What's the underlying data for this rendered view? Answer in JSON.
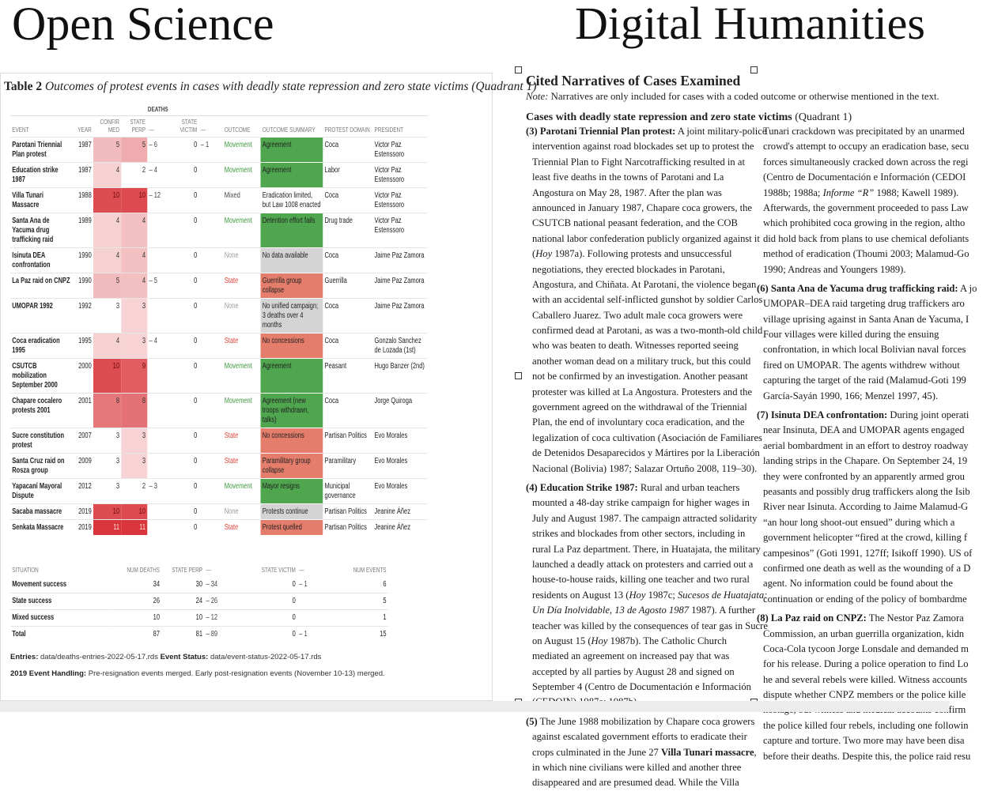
{
  "headings": {
    "left": "Open Science",
    "right": "Digital Humanities"
  },
  "colors": {
    "movement": "#3f9a3f",
    "state": "#e0433e",
    "none": "#9a9a9a",
    "mixed": "#444444",
    "green_fill": "#4fa64f",
    "red_fill": "#e47d6b",
    "gray_fill": "#d4d4d4",
    "heat_max": "#d9363c"
  },
  "table": {
    "title_bold": "Table 2",
    "title_italic": " Outcomes of protest events in cases with deadly state repression and zero state victims (Quadrant 1)",
    "group_header": "DEATHS",
    "columns": {
      "event": "EVENT",
      "year": "YEAR",
      "confirmed": "CONFIR MED",
      "state_perp": "STATE PERP",
      "perp_dash": "—",
      "state_victim": "STATE VICTIM",
      "victim_dash": "—",
      "outcome": "OUTCOME",
      "summary": "OUTCOME SUMMARY",
      "domain": "PROTEST DOMAIN",
      "president": "PRESIDENT"
    },
    "rows": [
      {
        "event": "Parotani Triennial Plan protest",
        "year": "1987",
        "confirmed": 5,
        "state_perp": 5,
        "perp_range": "– 6",
        "state_victim": "0",
        "victim_range": "– 1",
        "outcome": "Movement",
        "summary": "Agreement",
        "summary_type": "green",
        "domain": "Coca",
        "president": "Victor Paz Estenssoro"
      },
      {
        "event": "Education strike 1987",
        "year": "1987",
        "confirmed": 4,
        "state_perp": 2,
        "perp_range": "– 4",
        "state_victim": "0",
        "victim_range": "",
        "outcome": "Movement",
        "summary": "Agreement",
        "summary_type": "green",
        "domain": "Labor",
        "president": "Victor Paz Estenssoro"
      },
      {
        "event": "Villa Tunari Massacre",
        "year": "1988",
        "confirmed": 10,
        "state_perp": 10,
        "perp_range": "– 12",
        "state_victim": "0",
        "victim_range": "",
        "outcome": "Mixed",
        "summary": "Eradication limited, but Law 1008 enacted",
        "summary_type": "none",
        "domain": "Coca",
        "president": "Victor Paz Estenssoro"
      },
      {
        "event": "Santa Ana de Yacuma drug trafficking raid",
        "year": "1989",
        "confirmed": 4,
        "state_perp": 4,
        "perp_range": "",
        "state_victim": "0",
        "victim_range": "",
        "outcome": "Movement",
        "summary": "Detention effort fails",
        "summary_type": "green",
        "domain": "Drug trade",
        "president": "Victor Paz Estenssoro"
      },
      {
        "event": "Isinuta DEA confrontation",
        "year": "1990",
        "confirmed": 4,
        "state_perp": 4,
        "perp_range": "",
        "state_victim": "0",
        "victim_range": "",
        "outcome": "None",
        "summary": "No data available",
        "summary_type": "gray",
        "domain": "Coca",
        "president": "Jaime Paz Zamora"
      },
      {
        "event": "La Paz raid on CNPZ",
        "year": "1990",
        "confirmed": 5,
        "state_perp": 4,
        "perp_range": "– 5",
        "state_victim": "0",
        "victim_range": "",
        "outcome": "State",
        "summary": "Guerrilla group collapse",
        "summary_type": "red",
        "domain": "Guerrilla",
        "president": "Jaime Paz Zamora"
      },
      {
        "event": "UMOPAR 1992",
        "year": "1992",
        "confirmed": 3,
        "state_perp": 3,
        "perp_range": "",
        "state_victim": "0",
        "victim_range": "",
        "outcome": "None",
        "summary": "No unified campaign; 3 deaths over 4 months",
        "summary_type": "gray",
        "domain": "Coca",
        "president": "Jaime Paz Zamora"
      },
      {
        "event": "Coca eradication 1995",
        "year": "1995",
        "confirmed": 4,
        "state_perp": 3,
        "perp_range": "– 4",
        "state_victim": "0",
        "victim_range": "",
        "outcome": "State",
        "summary": "No concessions",
        "summary_type": "red",
        "domain": "Coca",
        "president": "Gonzalo Sanchez de Lozada (1st)"
      },
      {
        "event": "CSUTCB mobilization September 2000",
        "year": "2000",
        "confirmed": 10,
        "state_perp": 9,
        "perp_range": "",
        "state_victim": "0",
        "victim_range": "",
        "outcome": "Movement",
        "summary": "Agreement",
        "summary_type": "green",
        "domain": "Peasant",
        "president": "Hugo Banzer (2nd)"
      },
      {
        "event": "Chapare cocalero protests 2001",
        "year": "2001",
        "confirmed": 8,
        "state_perp": 8,
        "perp_range": "",
        "state_victim": "0",
        "victim_range": "",
        "outcome": "Movement",
        "summary": "Agreement (new troops withdrawn, talks)",
        "summary_type": "green",
        "domain": "Coca",
        "president": "Jorge Quiroga"
      },
      {
        "event": "Sucre constitution protest",
        "year": "2007",
        "confirmed": 3,
        "state_perp": 3,
        "perp_range": "",
        "state_victim": "0",
        "victim_range": "",
        "outcome": "State",
        "summary": "No concessions",
        "summary_type": "red",
        "domain": "Partisan Politics",
        "president": "Evo Morales"
      },
      {
        "event": "Santa Cruz raid on Rosza group",
        "year": "2009",
        "confirmed": 3,
        "state_perp": 3,
        "perp_range": "",
        "state_victim": "0",
        "victim_range": "",
        "outcome": "State",
        "summary": "Paramilitary group collapse",
        "summary_type": "red",
        "domain": "Paramilitary",
        "president": "Evo Morales"
      },
      {
        "event": "Yapacaní Mayoral Dispute",
        "year": "2012",
        "confirmed": 3,
        "state_perp": 2,
        "perp_range": "– 3",
        "state_victim": "0",
        "victim_range": "",
        "outcome": "Movement",
        "summary": "Mayor resigns",
        "summary_type": "green",
        "domain": "Municipal governance",
        "president": "Evo Morales"
      },
      {
        "event": "Sacaba massacre",
        "year": "2019",
        "confirmed": 10,
        "state_perp": 10,
        "perp_range": "",
        "state_victim": "0",
        "victim_range": "",
        "outcome": "None",
        "summary": "Protests continue",
        "summary_type": "gray",
        "domain": "Partisan Politics",
        "president": "Jeanine Áñez"
      },
      {
        "event": "Senkata Massacre",
        "year": "2019",
        "confirmed": 11,
        "state_perp": 11,
        "perp_range": "",
        "state_victim": "0",
        "victim_range": "",
        "outcome": "State",
        "summary": "Protest quelled",
        "summary_type": "red",
        "domain": "Partisan Politics",
        "president": "Jeanine Áñez"
      }
    ]
  },
  "summary": {
    "columns": {
      "situation": "SITUATION",
      "num_deaths": "NUM DEATHS",
      "state_perp": "STATE PERP",
      "perp_dash": "—",
      "state_victim": "STATE VICTIM",
      "victim_dash": "—",
      "num_events": "NUM EVENTS"
    },
    "rows": [
      {
        "situation": "Movement success",
        "num_deaths": "34",
        "state_perp": "30",
        "perp_range": "– 34",
        "state_victim": "0",
        "victim_range": "– 1",
        "num_events": "6"
      },
      {
        "situation": "State success",
        "num_deaths": "26",
        "state_perp": "24",
        "perp_range": "– 26",
        "state_victim": "0",
        "victim_range": "",
        "num_events": "5"
      },
      {
        "situation": "Mixed success",
        "num_deaths": "10",
        "state_perp": "10",
        "perp_range": "– 12",
        "state_victim": "0",
        "victim_range": "",
        "num_events": "1"
      },
      {
        "situation": "Total",
        "num_deaths": "87",
        "state_perp": "81",
        "perp_range": "– 89",
        "state_victim": "0",
        "victim_range": "– 1",
        "num_events": "15"
      }
    ]
  },
  "footer": {
    "entries_label": "Entries:",
    "entries_value": " data/deaths-entries-2022-05-17.rds ",
    "status_label": "Event Status:",
    "status_value": " data/event-status-2022-05-17.rds",
    "handling_label": "2019 Event Handling:",
    "handling_value": " Pre-resignation events merged. Early post-resignation events (November 10-13) merged."
  },
  "narratives": {
    "heading": "Cited Narratives of Cases Examined",
    "note_label": "Note:",
    "note_text": " Narratives are only included for cases with a coded outcome or otherwise mentioned in the text.",
    "section_bold": "Cases with deadly state repression and zero state victims",
    "section_rest": " (Quadrant 1)",
    "col1": [
      [
        [
          {
            "b": "(3) Parotani Triennial Plan protest:"
          },
          " A joint military-police"
        ],
        "intervention against road blockades set up to protest the",
        "Triennial Plan to Fight Narcotrafficking resulted in at",
        "least five deaths in the towns of Parotani and La",
        "Angostura on May 28, 1987. After the plan was",
        "announced in January 1987, Chapare coca growers, the",
        "CSUTCB national peasant federation, and the COB",
        "national labor confederation publicly organized against it",
        [
          "(",
          {
            "i": "Hoy"
          },
          " 1987a). Following protests and unsuccessful"
        ],
        "negotiations, they erected blockades in Parotani,",
        "Angostura, and Chiñata. At Parotani, the violence began",
        "with an accidental self-inflicted gunshot by soldier Carlos",
        "Caballero Juarez. Two adult male coca growers were",
        "confirmed dead at Parotani, as was a two-month-old child",
        "who was beaten to death. Witnesses reported seeing",
        "another woman dead on a military truck, but this could",
        "not be confirmed by an investigation. Another peasant",
        "protester was killed at La Angostura. Protesters and the",
        "government agreed on the withdrawal of the Triennial",
        "Plan, the end of involuntary coca eradication, and the",
        "legalization of coca cultivation (Asociación de Familiares",
        "de Detenidos Desaparecidos y Mártires por la Liberación",
        "Nacional (Bolivia) 1987; Salazar Ortuño 2008, 119–30)."
      ],
      [
        [
          {
            "b": "(4) Education Strike 1987:"
          },
          " Rural and urban teachers"
        ],
        "mounted a 48-day strike campaign for higher wages in",
        "July and August 1987. The campaign attracted solidarity",
        "strikes and blockades from other sectors, including in",
        "rural La Paz department. There, in Huatajata, the military",
        "launched a deadly attack on protesters and carried out a",
        "house-to-house raids, killing one teacher and two rural",
        [
          "residents on August 13 (",
          {
            "i": "Hoy"
          },
          " 1987c; ",
          {
            "i": "Sucesos de Huatajata:"
          }
        ],
        [
          {
            "i": "Un Día Inolvidable, 13 de Agosto 1987"
          },
          " 1987). A further"
        ],
        "teacher was killed by the consequences of tear gas in Sucre",
        [
          "on August 15  (",
          {
            "i": "Hoy"
          },
          " 1987b). The Catholic Church"
        ],
        "mediated an agreement on increased pay that was",
        "accepted by all parties by August 28 and signed on",
        "September 4  (Centro de Documentación e Información",
        "(CEDOIN) 1987a; 1987b)"
      ],
      [
        [
          {
            "b": "(5)"
          },
          " The June 1988 mobilization by Chapare coca growers"
        ],
        "against escalated government efforts to eradicate their",
        [
          "crops culminated in the June 27 ",
          {
            "b": "Villa Tunari massacre"
          },
          ","
        ],
        "in which nine civilians were killed and another three",
        "disappeared and are presumed dead. While the Villa"
      ]
    ],
    "col2": [
      [
        "Tunari crackdown was precipitated by an unarmed",
        "crowd's attempt to occupy an eradication base, secu",
        "forces simultaneously cracked down across the regi",
        "(Centro de Documentación e Información (CEDOI",
        [
          "1988b; 1988a; ",
          {
            "i": "Informe “R”"
          },
          " 1988; Kawell 1989)."
        ],
        "Afterwards, the government proceeded to pass Law",
        "which prohibited coca growing in the region, altho",
        "did hold back from plans to use chemical defoliants",
        "method of eradication (Thoumi 2003; Malamud-Go",
        "1990; Andreas and Youngers 1989)."
      ],
      [
        [
          {
            "b": "(6) Santa Ana de Yacuma drug trafficking raid:"
          },
          " A jo"
        ],
        "UMOPAR–DEA raid targeting drug traffickers aro",
        "village uprising against in Santa Anan de Yacuma, I",
        "Four villages were killed during the ensuing",
        "confrontation, in which local Bolivian naval forces",
        "fired on UMOPAR. The agents withdrew without",
        "capturing the target of the raid (Malamud-Goti 199",
        "García-Sayán 1990, 166; Menzel 1997, 45)."
      ],
      [
        [
          {
            "b": "(7) Isinuta DEA confrontation:"
          },
          " During joint operati"
        ],
        "near Insinuta, DEA and UMOPAR agents engaged",
        "aerial bombardment in an effort to destroy roadway",
        "landing strips in the Chapare. On September 24, 19",
        "they were confronted by an apparently armed grou",
        "peasants and possibly drug traffickers along the Isib",
        "River near Isinuta. According to Jaime Malamud-G",
        "“an hour long shoot-out ensued” during which a",
        "government helicopter “fired at the crowd, killing f",
        "campesinos” (Goti 1991, 127ff; Isikoff 1990). US of",
        "confirmed one death as well as the wounding of a D",
        "agent. No information could be found about the",
        "continuation or ending of the policy of bombardme"
      ],
      [
        [
          {
            "b": "(8) La Paz raid on CNPZ:"
          },
          " The Nestor Paz Zamora"
        ],
        "Commission, an urban guerrilla organization, kidn",
        "Coca-Cola tycoon Jorge Lonsdale and demanded m",
        "for his release. During a police operation to find Lo",
        "he and several rebels were killed. Witness accounts",
        "dispute whether CNPZ members or the police kille",
        "hostage, but witness and medical accounts confirm",
        "the police killed four rebels, including one followin",
        "capture and torture. Two more may have been disa",
        "before their deaths. Despite this, the police raid resu"
      ]
    ]
  }
}
